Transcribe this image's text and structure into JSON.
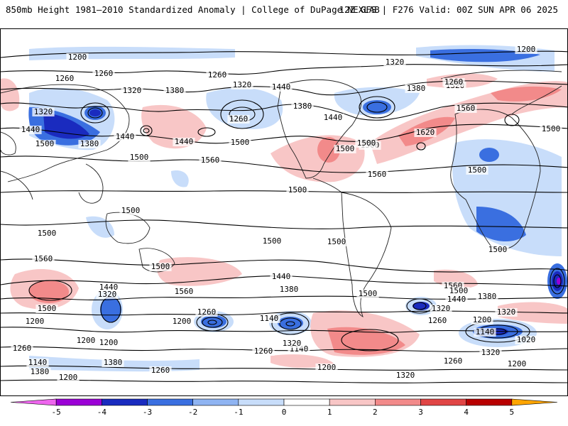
{
  "header": {
    "title": "850mb Height 1981–2010 Standardized Anomaly | College of DuPage NEXLAB",
    "model_info": "12Z GFS | F276 Valid: 00Z SUN APR 06 2025"
  },
  "map": {
    "contour_labels": [
      "1200",
      "1260",
      "1260",
      "1200",
      "1260",
      "1320",
      "1380",
      "1320",
      "1440",
      "1380",
      "1380",
      "1320",
      "1320",
      "1260",
      "1320",
      "1560",
      "1440",
      "1380",
      "1500",
      "1260",
      "1440",
      "1500",
      "1500",
      "1620",
      "1500",
      "1500",
      "1560",
      "1440",
      "1500",
      "1500",
      "1440",
      "1500",
      "1560",
      "1500",
      "1500",
      "1500",
      "1500",
      "1500",
      "1500",
      "1560",
      "1500",
      "1440",
      "1560",
      "1440",
      "1380",
      "1500",
      "1560",
      "1380",
      "1500",
      "1500",
      "1320",
      "1320",
      "1440",
      "1320",
      "1200",
      "1200",
      "1260",
      "1140",
      "1200",
      "1200",
      "1260",
      "1260",
      "1140",
      "1260",
      "1200",
      "1320",
      "1140",
      "1020",
      "1140",
      "1380",
      "1380",
      "1320",
      "1260",
      "1200",
      "1260",
      "1200",
      "1200",
      "1320",
      "1320",
      "1260"
    ]
  },
  "colorbar": {
    "ticks": [
      "-5",
      "-4",
      "-3",
      "-2",
      "-1",
      "0",
      "1",
      "2",
      "3",
      "4",
      "5"
    ],
    "colors": [
      "#ee66ee",
      "#9b00d6",
      "#1a2bbf",
      "#3a6fe0",
      "#8fb4f2",
      "#c8ddfa",
      "#ffffff",
      "#f8c6c6",
      "#f28a8a",
      "#e04545",
      "#b80000",
      "#ffa500"
    ]
  }
}
